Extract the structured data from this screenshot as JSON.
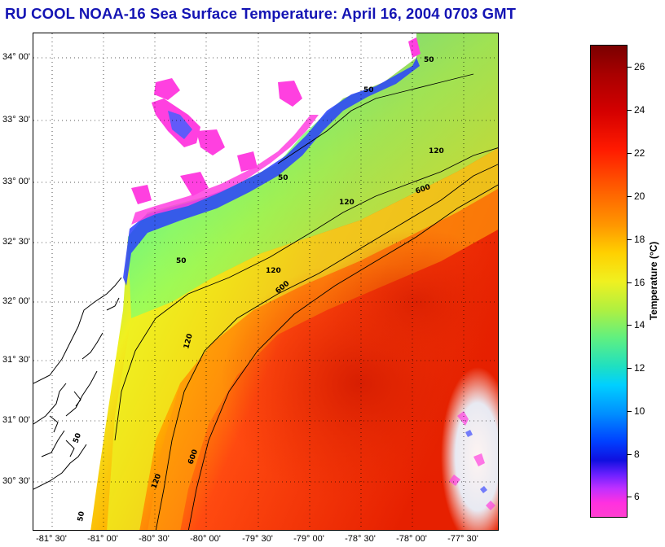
{
  "title": "RU COOL  NOAA-16  Sea Surface Temperature:  April 16, 2004 0703 GMT",
  "lat_labels": [
    "34° 00'",
    "33° 30'",
    "33° 00'",
    "32° 30'",
    "32° 00'",
    "31° 30'",
    "31° 00'",
    "30° 30'"
  ],
  "lon_labels": [
    "-81° 30'",
    "-81° 00'",
    "-80° 30'",
    "-80° 00'",
    "-79° 30'",
    "-79° 00'",
    "-78° 30'",
    "-78° 00'",
    "-77° 30'"
  ],
  "contour_labels": [
    "50",
    "50",
    "50",
    "50",
    "50",
    "50",
    "120",
    "120",
    "120",
    "120",
    "120",
    "600",
    "600",
    "600"
  ],
  "colorbar": {
    "title": "Temperature (°C)",
    "ticks": [
      "26",
      "24",
      "22",
      "20",
      "18",
      "16",
      "14",
      "12",
      "10",
      "8",
      "6"
    ],
    "range": [
      5,
      27
    ]
  },
  "colors": {
    "title": "#1414b4",
    "land": "#ffffff",
    "coast": "#000000"
  }
}
